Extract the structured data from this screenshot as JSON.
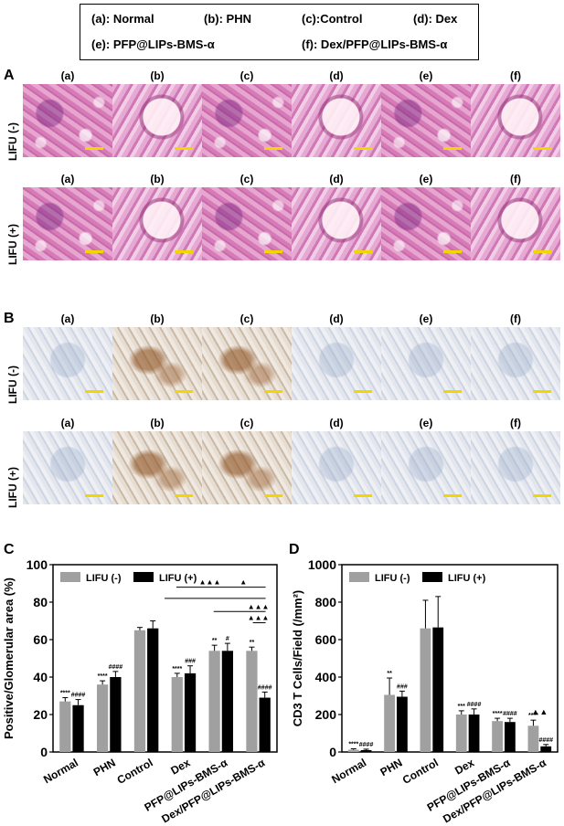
{
  "legend": {
    "a": "(a): Normal",
    "b": "(b): PHN",
    "c": "(c):Control",
    "d": "(d): Dex",
    "e": "(e): PFP@LIPs-BMS-α",
    "f": "(f): Dex/PFP@LIPs-BMS-α"
  },
  "panels": {
    "A": "A",
    "B": "B",
    "C": "C",
    "D": "D"
  },
  "rows": {
    "minus": "LIFU (-)",
    "plus": "LIFU (+)"
  },
  "tiles": [
    "(a)",
    "(b)",
    "(c)",
    "(d)",
    "(e)",
    "(f)"
  ],
  "chart_data": [
    {
      "type": "bar",
      "panel": "C",
      "ylabel": "Positive/Glomerular area (%)",
      "ylim": [
        0,
        100
      ],
      "yticks": [
        "0",
        "20",
        "40",
        "60",
        "80",
        "100"
      ],
      "categories": [
        "Normal",
        "PHN",
        "Control",
        "Dex",
        "PFP@LIPs-BMS-α",
        "Dex/PFP@LIPs-BMS-α"
      ],
      "series": [
        {
          "name": "LIFU (-)",
          "color": "#a0a0a0",
          "values": [
            27,
            36,
            65,
            40,
            54,
            54
          ],
          "errors": [
            2,
            2,
            1.5,
            2,
            3,
            2
          ],
          "annot": [
            "****",
            "****",
            "",
            "****",
            "**",
            "**"
          ]
        },
        {
          "name": "LIFU (+)",
          "color": "#000000",
          "values": [
            25,
            40,
            66,
            42,
            54,
            29
          ],
          "errors": [
            3,
            3,
            4,
            4,
            4,
            3
          ],
          "annot": [
            "####",
            "####",
            "",
            "###",
            "#",
            "####"
          ]
        }
      ],
      "comparisons": [
        "▲▲▲",
        "▲",
        "▲▲▲",
        "▲▲▲"
      ]
    },
    {
      "type": "bar",
      "panel": "D",
      "ylabel": "CD3 T Cells/Field (/mm²)",
      "ylim": [
        0,
        1000
      ],
      "yticks": [
        "0",
        "200",
        "400",
        "600",
        "800",
        "1000"
      ],
      "categories": [
        "Normal",
        "PHN",
        "Control",
        "Dex",
        "PFP@LIPs-BMS-α",
        "Dex/PFP@LIPs-BMS-α"
      ],
      "series": [
        {
          "name": "LIFU (-)",
          "color": "#a0a0a0",
          "values": [
            12,
            305,
            660,
            200,
            165,
            140
          ],
          "errors": [
            5,
            90,
            150,
            20,
            15,
            30
          ],
          "annot": [
            "****",
            "**",
            "",
            "***",
            "****",
            "****"
          ]
        },
        {
          "name": "LIFU (+)",
          "color": "#000000",
          "values": [
            10,
            295,
            665,
            200,
            160,
            30
          ],
          "errors": [
            5,
            30,
            165,
            30,
            20,
            10
          ],
          "annot": [
            "####",
            "###",
            "",
            "####",
            "####",
            "####"
          ]
        }
      ],
      "comparisons": [
        "▲▲"
      ]
    }
  ]
}
